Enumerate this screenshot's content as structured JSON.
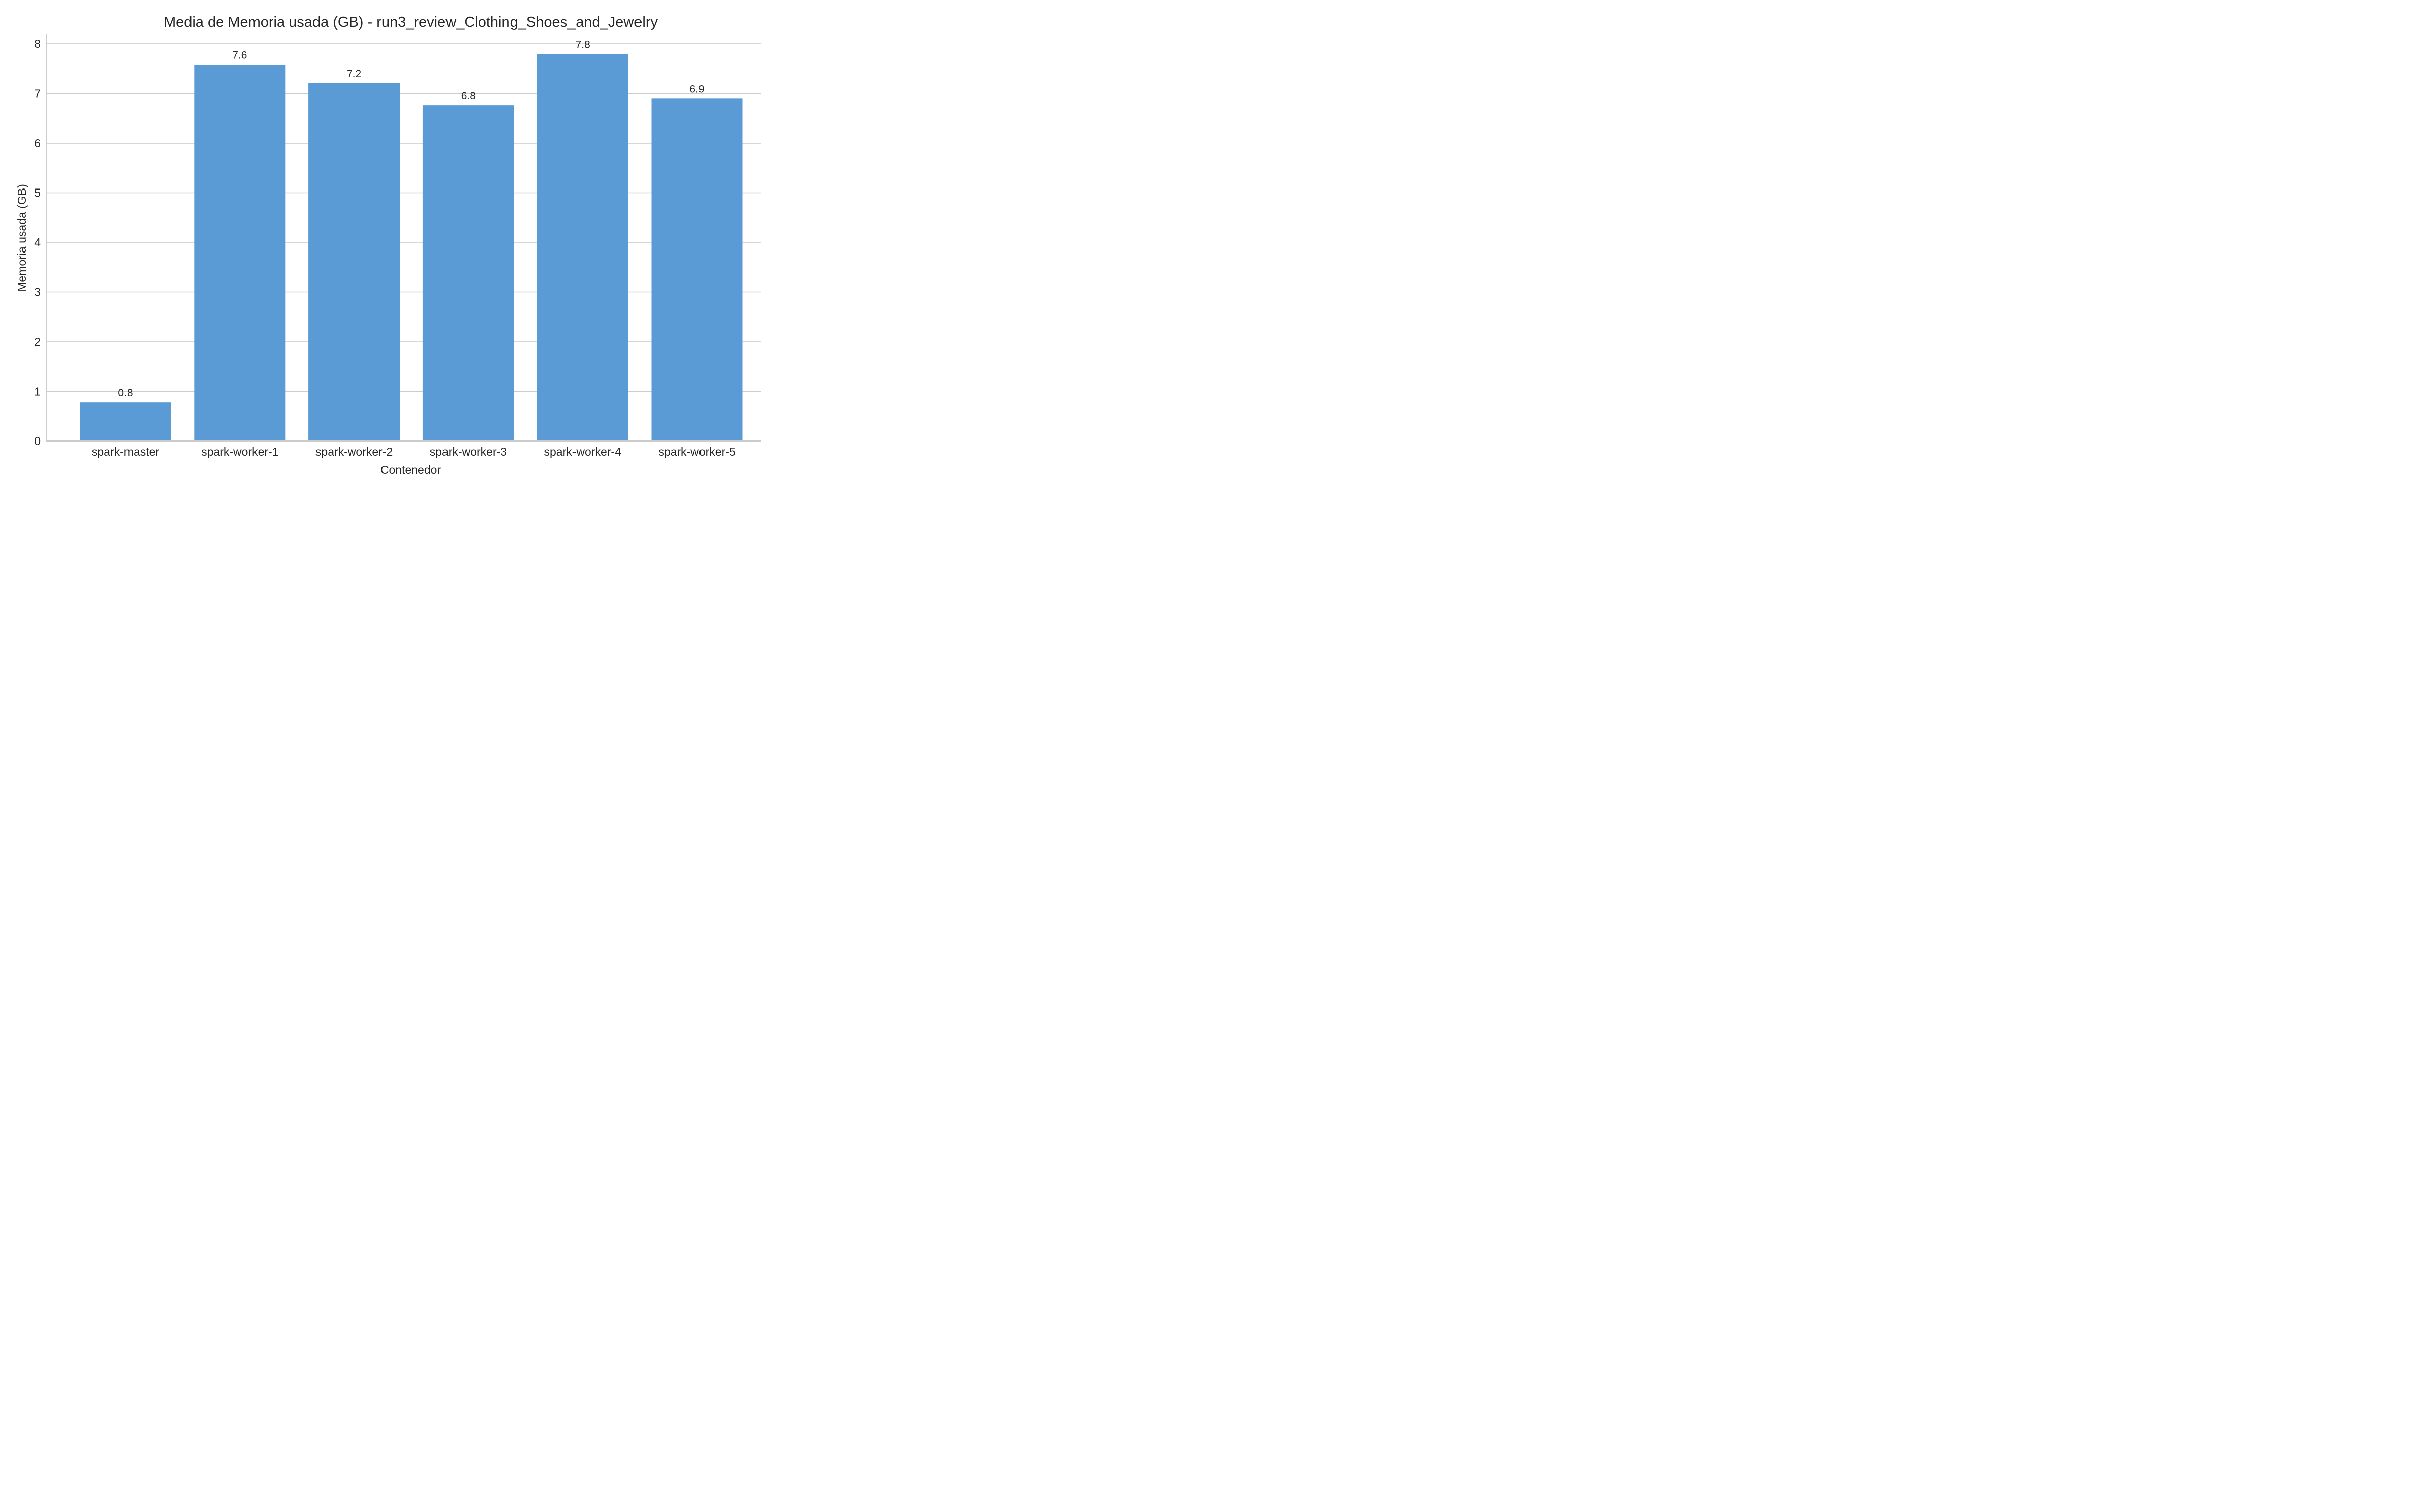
{
  "chart_data": {
    "type": "bar",
    "title": "Media de Memoria usada (GB) - run3_review_Clothing_Shoes_and_Jewelry",
    "xlabel": "Contenedor",
    "ylabel": "Memoria usada (GB)",
    "categories": [
      "spark-master",
      "spark-worker-1",
      "spark-worker-2",
      "spark-worker-3",
      "spark-worker-4",
      "spark-worker-5"
    ],
    "values": [
      0.78,
      7.58,
      7.21,
      6.76,
      7.79,
      6.9
    ],
    "data_labels": [
      "0.8",
      "7.6",
      "7.2",
      "6.8",
      "7.8",
      "6.9"
    ],
    "ylim": [
      0,
      8.2
    ],
    "yticks": [
      0,
      1,
      2,
      3,
      4,
      5,
      6,
      7,
      8
    ],
    "grid": "y",
    "legend": "none",
    "bar_color": "#5b9bd5",
    "grid_color": "#cccccc",
    "axis_color": "#cccccc",
    "text_color": "#262626"
  }
}
